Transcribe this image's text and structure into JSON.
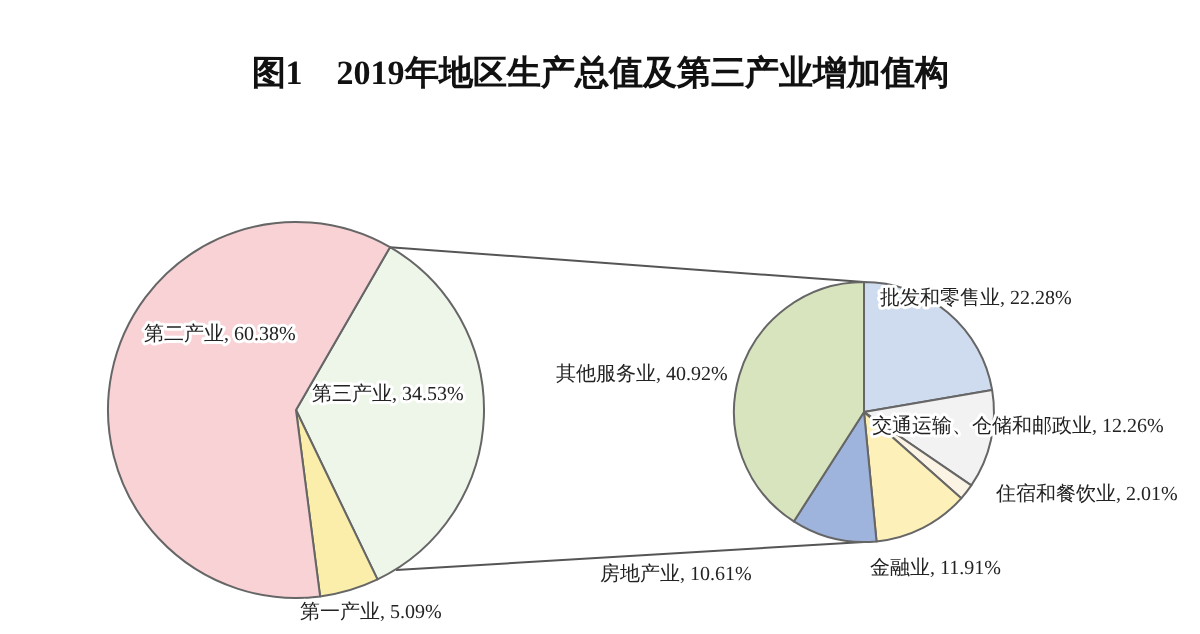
{
  "chart_data": [
    {
      "type": "pie",
      "title": "图1　2019年地区生产总值及第三产业增加值构",
      "categories": [
        "第三产业",
        "第一产业",
        "第二产业"
      ],
      "values": [
        34.53,
        5.09,
        60.38
      ],
      "value_labels": [
        "34.53%",
        "5.09%",
        "60.38%"
      ],
      "colors": [
        "#eef6ea",
        "#fbeeaa",
        "#f9d2d6"
      ]
    },
    {
      "type": "pie",
      "categories": [
        "批发和零售业",
        "交通运输、仓储和邮政业",
        "住宿和餐饮业",
        "金融业",
        "房地产业",
        "其他服务业"
      ],
      "values": [
        22.28,
        12.26,
        2.01,
        11.91,
        10.61,
        40.92
      ],
      "value_labels": [
        "22.28%",
        "12.26%",
        "2.01%",
        "11.91%",
        "10.61%",
        "40.92%"
      ],
      "colors": [
        "#cfdcef",
        "#f2f2f2",
        "#fbf3e4",
        "#fdf0b8",
        "#9fb4dc",
        "#d7e4bd"
      ]
    }
  ]
}
